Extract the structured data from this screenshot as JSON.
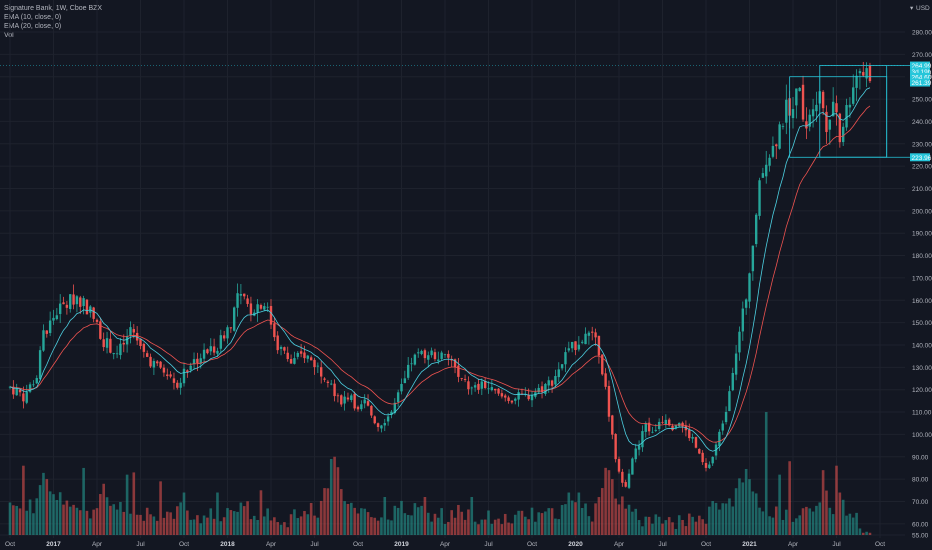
{
  "legend": {
    "symbol": "Signature Bank, 1W, Cboe BZX",
    "ema10": "EMA (10, close, 0)",
    "ema20": "EMA (20, close, 0)",
    "vol": "Vol"
  },
  "currency": "USD",
  "colors": {
    "background": "#131722",
    "up": "#26a69a",
    "down": "#ef5350",
    "ema10": "#4dd0e1",
    "ema20": "#ef5350",
    "grid": "#1e222d",
    "annotation": "#26c6da"
  },
  "chart_data": {
    "type": "candlestick",
    "timeframe": "1W",
    "ylim": [
      55,
      280
    ],
    "yticks": [
      55,
      60,
      70,
      80,
      90,
      100,
      110,
      120,
      130,
      140,
      150,
      160,
      170,
      180,
      190,
      200,
      210,
      220,
      230,
      240,
      250,
      260,
      270,
      280
    ],
    "ytick_labels": [
      "55.00",
      "60.00",
      "70.00",
      "80.00",
      "90.00",
      "100.00",
      "110.00",
      "120.00",
      "130.00",
      "140.00",
      "150.00",
      "160.00",
      "170.00",
      "180.00",
      "190.00",
      "200.00",
      "210.00",
      "220.00",
      "230.00",
      "240.00",
      "250.00",
      "260.00",
      "270.00",
      "280.00"
    ],
    "xaxis": [
      {
        "label": "Oct",
        "bold": false,
        "week": 0
      },
      {
        "label": "2017",
        "bold": true,
        "week": 13
      },
      {
        "label": "Apr",
        "bold": false,
        "week": 26
      },
      {
        "label": "Jul",
        "bold": false,
        "week": 39
      },
      {
        "label": "Oct",
        "bold": false,
        "week": 52
      },
      {
        "label": "2018",
        "bold": true,
        "week": 65
      },
      {
        "label": "Apr",
        "bold": false,
        "week": 78
      },
      {
        "label": "Jul",
        "bold": false,
        "week": 91
      },
      {
        "label": "Oct",
        "bold": false,
        "week": 104
      },
      {
        "label": "2019",
        "bold": true,
        "week": 117
      },
      {
        "label": "Apr",
        "bold": false,
        "week": 130
      },
      {
        "label": "Jul",
        "bold": false,
        "week": 143
      },
      {
        "label": "Oct",
        "bold": false,
        "week": 156
      },
      {
        "label": "2020",
        "bold": true,
        "week": 169
      },
      {
        "label": "Apr",
        "bold": false,
        "week": 182
      },
      {
        "label": "Jul",
        "bold": false,
        "week": 195
      },
      {
        "label": "Oct",
        "bold": false,
        "week": 208
      },
      {
        "label": "2021",
        "bold": true,
        "week": 221
      },
      {
        "label": "Apr",
        "bold": false,
        "week": 234
      },
      {
        "label": "Jul",
        "bold": false,
        "week": 247
      },
      {
        "label": "Oct",
        "bold": false,
        "week": 260
      }
    ],
    "weeks_shown": 258,
    "price_path": [
      [
        0,
        121
      ],
      [
        4,
        117
      ],
      [
        8,
        126
      ],
      [
        10,
        145
      ],
      [
        14,
        155
      ],
      [
        20,
        162
      ],
      [
        24,
        155
      ],
      [
        28,
        142
      ],
      [
        32,
        136
      ],
      [
        36,
        145
      ],
      [
        40,
        136
      ],
      [
        44,
        130
      ],
      [
        48,
        128
      ],
      [
        50,
        122
      ],
      [
        54,
        132
      ],
      [
        58,
        136
      ],
      [
        62,
        140
      ],
      [
        66,
        150
      ],
      [
        68,
        162
      ],
      [
        72,
        156
      ],
      [
        76,
        160
      ],
      [
        80,
        140
      ],
      [
        84,
        132
      ],
      [
        88,
        136
      ],
      [
        92,
        130
      ],
      [
        96,
        124
      ],
      [
        98,
        115
      ],
      [
        102,
        118
      ],
      [
        104,
        110
      ],
      [
        106,
        114
      ],
      [
        110,
        104
      ],
      [
        114,
        110
      ],
      [
        118,
        124
      ],
      [
        120,
        133
      ],
      [
        124,
        137
      ],
      [
        128,
        135
      ],
      [
        132,
        133
      ],
      [
        134,
        125
      ],
      [
        138,
        120
      ],
      [
        142,
        122
      ],
      [
        146,
        117
      ],
      [
        150,
        116
      ],
      [
        154,
        117
      ],
      [
        158,
        120
      ],
      [
        162,
        124
      ],
      [
        166,
        135
      ],
      [
        170,
        142
      ],
      [
        172,
        146
      ],
      [
        174,
        143
      ],
      [
        176,
        138
      ],
      [
        178,
        120
      ],
      [
        180,
        98
      ],
      [
        182,
        82
      ],
      [
        184,
        78
      ],
      [
        186,
        90
      ],
      [
        188,
        95
      ],
      [
        190,
        105
      ],
      [
        192,
        100
      ],
      [
        194,
        106
      ],
      [
        196,
        108
      ],
      [
        198,
        104
      ],
      [
        200,
        106
      ],
      [
        202,
        101
      ],
      [
        204,
        98
      ],
      [
        206,
        90
      ],
      [
        208,
        84
      ],
      [
        210,
        90
      ],
      [
        212,
        100
      ],
      [
        214,
        112
      ],
      [
        216,
        130
      ],
      [
        218,
        145
      ],
      [
        220,
        162
      ],
      [
        222,
        185
      ],
      [
        224,
        210
      ],
      [
        226,
        225
      ],
      [
        228,
        228
      ],
      [
        230,
        238
      ],
      [
        232,
        245
      ],
      [
        234,
        250
      ],
      [
        236,
        252
      ],
      [
        238,
        240
      ],
      [
        240,
        250
      ],
      [
        242,
        255
      ],
      [
        244,
        240
      ],
      [
        246,
        250
      ],
      [
        248,
        235
      ],
      [
        250,
        245
      ],
      [
        252,
        258
      ],
      [
        254,
        264
      ],
      [
        255,
        262
      ]
    ],
    "vol_path": [
      [
        0,
        70
      ],
      [
        4,
        66
      ],
      [
        8,
        68
      ],
      [
        10,
        85
      ],
      [
        12,
        75
      ],
      [
        16,
        70
      ],
      [
        20,
        64
      ],
      [
        24,
        66
      ],
      [
        28,
        76
      ],
      [
        32,
        67
      ],
      [
        36,
        65
      ],
      [
        40,
        64
      ],
      [
        44,
        62
      ],
      [
        48,
        66
      ],
      [
        52,
        66
      ],
      [
        56,
        63
      ],
      [
        60,
        64
      ],
      [
        64,
        65
      ],
      [
        68,
        68
      ],
      [
        72,
        66
      ],
      [
        76,
        64
      ],
      [
        80,
        63
      ],
      [
        84,
        62
      ],
      [
        88,
        65
      ],
      [
        92,
        66
      ],
      [
        96,
        78
      ],
      [
        98,
        84
      ],
      [
        100,
        67
      ],
      [
        102,
        66
      ],
      [
        104,
        63
      ],
      [
        106,
        66
      ],
      [
        110,
        64
      ],
      [
        114,
        65
      ],
      [
        118,
        68
      ],
      [
        122,
        66
      ],
      [
        126,
        64
      ],
      [
        130,
        63
      ],
      [
        134,
        65
      ],
      [
        138,
        64
      ],
      [
        142,
        62
      ],
      [
        146,
        64
      ],
      [
        150,
        62
      ],
      [
        154,
        63
      ],
      [
        158,
        64
      ],
      [
        162,
        64
      ],
      [
        166,
        66
      ],
      [
        170,
        68
      ],
      [
        172,
        66
      ],
      [
        174,
        63
      ],
      [
        176,
        74
      ],
      [
        178,
        82
      ],
      [
        180,
        70
      ],
      [
        182,
        72
      ],
      [
        184,
        66
      ],
      [
        188,
        62
      ],
      [
        192,
        61
      ],
      [
        196,
        60
      ],
      [
        200,
        61
      ],
      [
        204,
        61
      ],
      [
        206,
        66
      ],
      [
        208,
        64
      ],
      [
        210,
        68
      ],
      [
        212,
        66
      ],
      [
        216,
        70
      ],
      [
        218,
        80
      ],
      [
        220,
        82
      ],
      [
        222,
        76
      ],
      [
        224,
        70
      ],
      [
        226,
        66
      ],
      [
        228,
        64
      ],
      [
        230,
        64
      ],
      [
        232,
        63
      ],
      [
        234,
        64
      ],
      [
        236,
        66
      ],
      [
        238,
        68
      ],
      [
        240,
        66
      ],
      [
        242,
        68
      ],
      [
        244,
        72
      ],
      [
        246,
        65
      ],
      [
        248,
        70
      ],
      [
        250,
        65
      ],
      [
        252,
        64
      ],
      [
        254,
        58
      ],
      [
        255,
        56
      ]
    ],
    "volume_spikes": {
      "4": 86,
      "11": 80,
      "22": 85,
      "35": 82,
      "37": 83,
      "45": 79,
      "52": 74,
      "62": 74,
      "75": 75,
      "96": 89,
      "97": 90,
      "112": 72,
      "124": 72,
      "138": 72,
      "167": 74,
      "170": 74,
      "177": 76,
      "179": 84,
      "180": 80,
      "221": 80,
      "226": 110,
      "230": 82,
      "233": 88,
      "243": 84,
      "247": 86,
      "248": 74
    },
    "horizontal_line": 265,
    "annotations": [
      {
        "label": "264.99",
        "value": 264.99
      },
      {
        "label": "3d 19h",
        "value": 262.3
      },
      {
        "label": "264.60",
        "value": 259.9
      },
      {
        "label": "261.39",
        "value": 257.4
      },
      {
        "label": "223.96",
        "value": 223.96
      }
    ],
    "ranges": [
      {
        "w0": 242,
        "w1": 262,
        "lo": 224,
        "hi": 265
      },
      {
        "w0": 233,
        "w1": 262,
        "lo": 223.96,
        "hi": 260
      }
    ]
  }
}
